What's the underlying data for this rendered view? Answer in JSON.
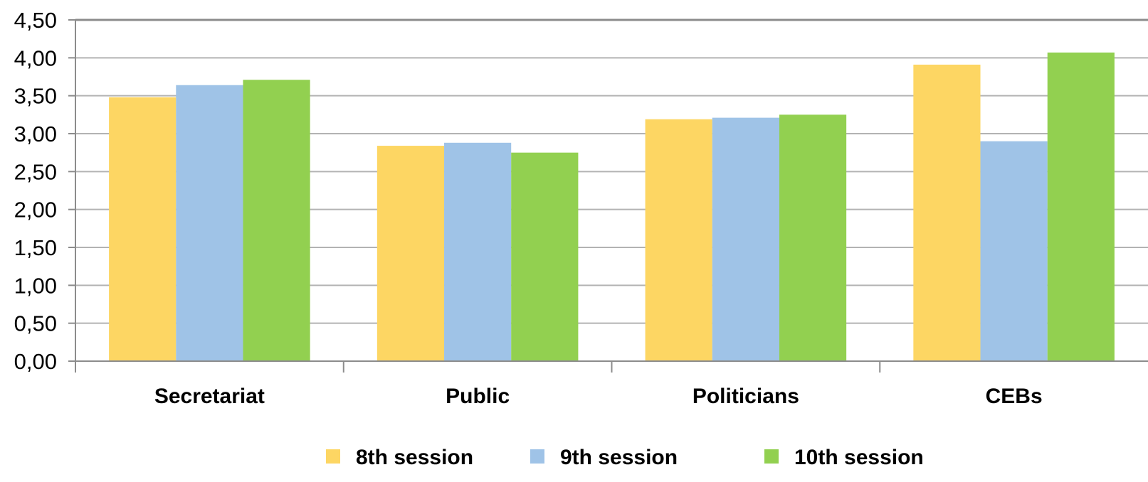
{
  "chart_data": {
    "type": "bar",
    "categories": [
      "Secretariat",
      "Public",
      "Politicians",
      "CEBs"
    ],
    "series": [
      {
        "name": "8th session",
        "color": "#FDD663",
        "values": [
          3.48,
          2.84,
          3.19,
          3.91
        ]
      },
      {
        "name": "9th session",
        "color": "#9FC3E7",
        "values": [
          3.64,
          2.88,
          3.21,
          2.9
        ]
      },
      {
        "name": "10th session",
        "color": "#92D050",
        "values": [
          3.71,
          2.75,
          3.25,
          4.07
        ]
      }
    ],
    "title": "",
    "xlabel": "",
    "ylabel": "",
    "ylim": [
      0,
      4.5
    ],
    "yticks": [
      "0,00",
      "0,50",
      "1,00",
      "1,50",
      "2,00",
      "2,50",
      "3,00",
      "3,50",
      "4,00",
      "4,50"
    ],
    "grid": true,
    "legend": "bottom"
  }
}
